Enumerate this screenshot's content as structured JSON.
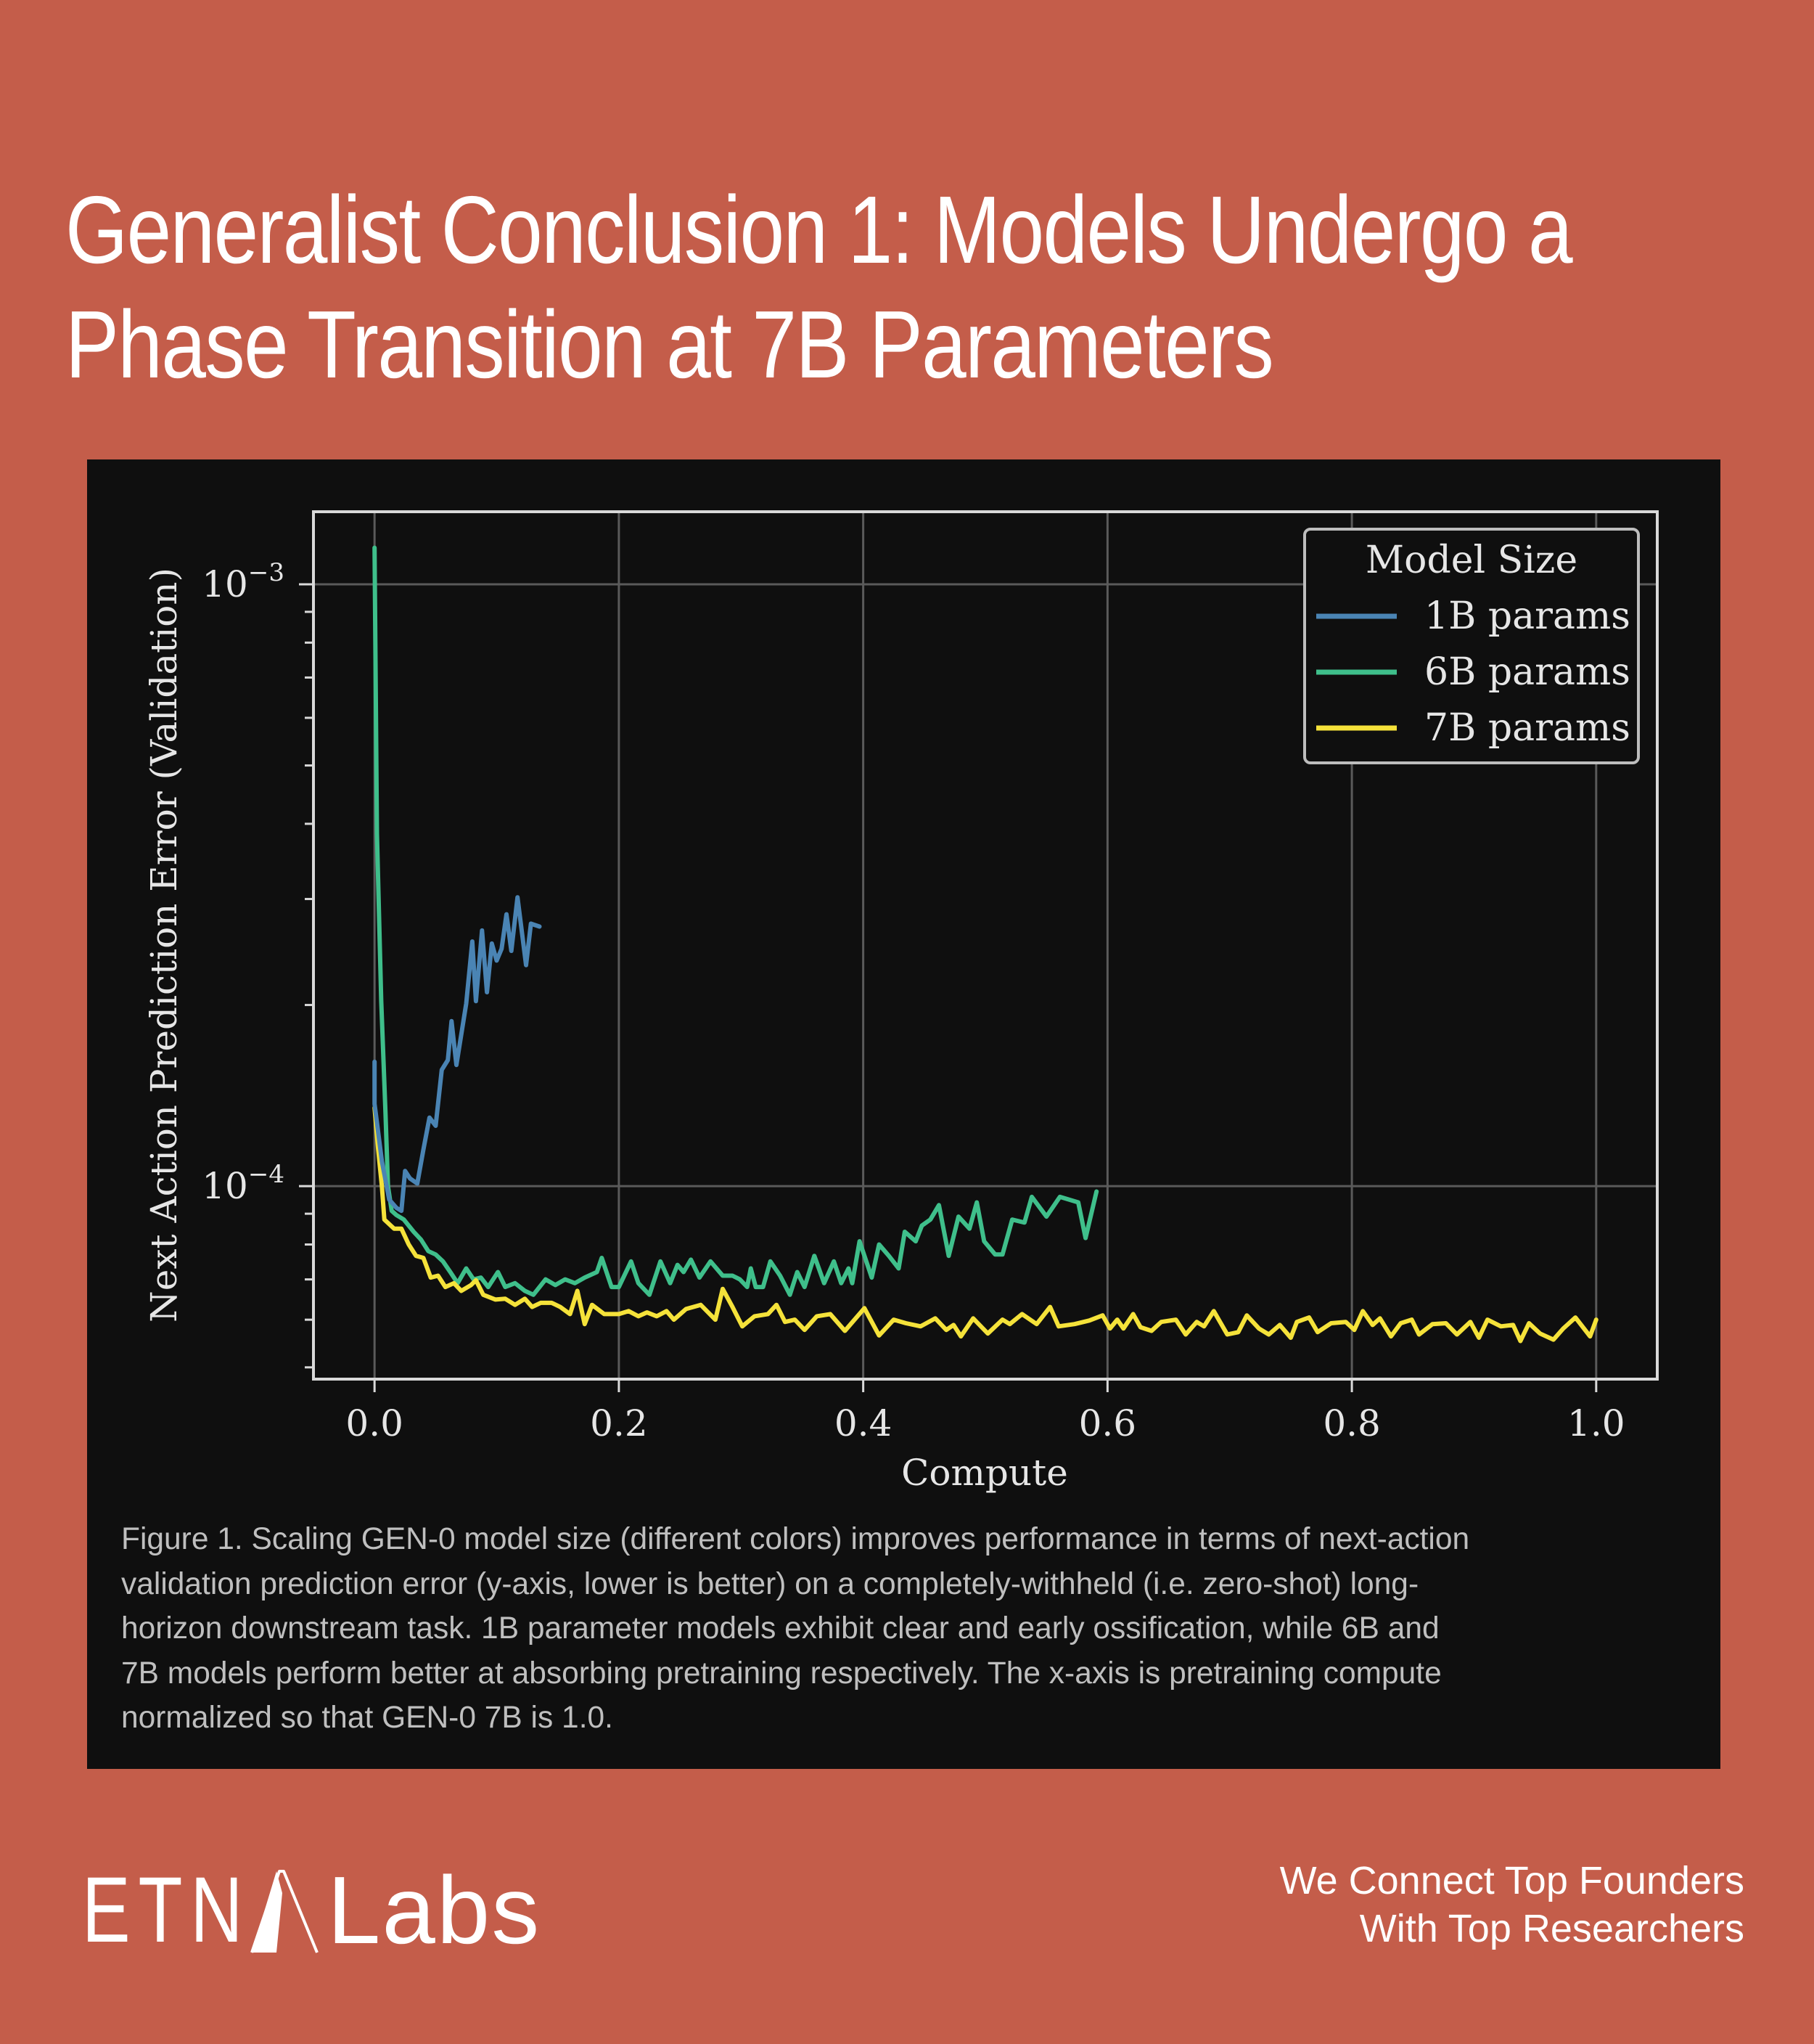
{
  "header": {
    "title_lines": [
      "Generalist Conclusion 1: Models Undergo a",
      "Phase Transition at 7B Parameters"
    ]
  },
  "colors": {
    "background": "#C45D4A",
    "panel": "#0f0f0f",
    "series_1b": "#4a84b4",
    "series_6b": "#3fbf8b",
    "series_7b": "#f5e23a",
    "grid": "#5a5a5a",
    "frame": "#d9d9d9",
    "text_light": "#e6e6e6",
    "caption": "#bfbfbf"
  },
  "caption": {
    "lines": [
      "Figure 1. Scaling GEN-0 model size (different colors) improves performance in terms of next-action",
      "validation prediction error (y-axis, lower is better) on a completely-withheld (i.e. zero-shot) long-",
      "horizon downstream task. 1B parameter models exhibit clear and early ossification, while 6B and",
      "7B models perform better at absorbing pretraining respectively. The x-axis is pretraining compute",
      "normalized so that GEN-0 7B is 1.0."
    ]
  },
  "footer": {
    "logo_left": "ETN",
    "logo_right": "Labs",
    "logo_icon": "mountain-a-icon",
    "tagline_lines": [
      "We Connect Top Founders",
      "With Top Researchers"
    ]
  },
  "chart_data": {
    "type": "line",
    "title": "",
    "xlabel": "Compute",
    "ylabel": "Next Action Prediction Error (Validation)",
    "xscale": "linear",
    "yscale": "log",
    "xlim": [
      -0.05,
      1.05
    ],
    "ylim": [
      4.78e-05,
      0.00132
    ],
    "xticks": [
      0.0,
      0.2,
      0.4,
      0.6,
      0.8,
      1.0
    ],
    "xtick_labels": [
      "0.0",
      "0.2",
      "0.4",
      "0.6",
      "0.8",
      "1.0"
    ],
    "yticks": [
      0.001,
      0.0001
    ],
    "ytick_labels": [
      {
        "base": "10",
        "exp": "−3"
      },
      {
        "base": "10",
        "exp": "−4"
      }
    ],
    "yminor_ticks": [
      0.0009,
      0.0008,
      0.0007,
      0.0006,
      0.0005,
      0.0004,
      0.0003,
      0.0002,
      9e-05,
      8e-05,
      7e-05,
      6e-05,
      5e-05
    ],
    "grid": true,
    "legend": {
      "title": "Model Size",
      "placement": "top-right",
      "entries": [
        "1B params",
        "6B params",
        "7B params"
      ]
    },
    "series": [
      {
        "name": "1B params",
        "color_key": "series_1b",
        "x": [
          0,
          0.0,
          0.006,
          0.012,
          0.018,
          0.022,
          0.025,
          0.029,
          0.035,
          0.04,
          0.045,
          0.05,
          0.055,
          0.06,
          0.063,
          0.067,
          0.075,
          0.08,
          0.083,
          0.088,
          0.092,
          0.096,
          0.1,
          0.104,
          0.108,
          0.112,
          0.117,
          0.124,
          0.128,
          0.135
        ],
        "y": [
          0.000161,
          0.000137,
          0.00011,
          9.5e-05,
          9.2e-05,
          9.1e-05,
          0.000106,
          0.000103,
          0.000101,
          0.000115,
          0.00013,
          0.000126,
          0.000156,
          0.000162,
          0.000188,
          0.000159,
          0.000201,
          0.000255,
          0.000203,
          0.000266,
          0.00021,
          0.000253,
          0.000237,
          0.000248,
          0.000283,
          0.000246,
          0.000302,
          0.000233,
          0.000273,
          0.00027
        ]
      },
      {
        "name": "6B params",
        "color_key": "series_6b",
        "x": [
          0,
          0.002,
          0.0055,
          0.009,
          0.011,
          0.014,
          0.018,
          0.024,
          0.032,
          0.038,
          0.044,
          0.05,
          0.056,
          0.062,
          0.068,
          0.075,
          0.081,
          0.087,
          0.093,
          0.101,
          0.107,
          0.115,
          0.123,
          0.13,
          0.14,
          0.148,
          0.156,
          0.164,
          0.172,
          0.182,
          0.186,
          0.194,
          0.2,
          0.21,
          0.216,
          0.225,
          0.234,
          0.242,
          0.248,
          0.253,
          0.259,
          0.266,
          0.275,
          0.285,
          0.293,
          0.299,
          0.305,
          0.308,
          0.312,
          0.318,
          0.324,
          0.332,
          0.34,
          0.346,
          0.352,
          0.36,
          0.368,
          0.376,
          0.382,
          0.388,
          0.391,
          0.397,
          0.407,
          0.413,
          0.421,
          0.429,
          0.434,
          0.443,
          0.448,
          0.455,
          0.462,
          0.47,
          0.478,
          0.487,
          0.493,
          0.499,
          0.508,
          0.514,
          0.522,
          0.532,
          0.538,
          0.55,
          0.561,
          0.576,
          0.582,
          0.591
        ],
        "y": [
          0.00115,
          0.000385,
          0.000203,
          0.000132,
          0.0001,
          9.1e-05,
          8.95e-05,
          8.8e-05,
          8.4e-05,
          8.15e-05,
          7.8e-05,
          7.7e-05,
          7.5e-05,
          7.2e-05,
          6.9e-05,
          7.3e-05,
          7e-05,
          7.05e-05,
          6.8e-05,
          7.2e-05,
          6.8e-05,
          6.9e-05,
          6.7e-05,
          6.6e-05,
          7e-05,
          6.85e-05,
          7e-05,
          6.9e-05,
          7.05e-05,
          7.2e-05,
          7.6e-05,
          6.8e-05,
          6.8e-05,
          7.5e-05,
          6.9e-05,
          6.6e-05,
          7.5e-05,
          6.9e-05,
          7.4e-05,
          7.2e-05,
          7.55e-05,
          7.05e-05,
          7.5e-05,
          7.1e-05,
          7.1e-05,
          7e-05,
          6.8e-05,
          7.3e-05,
          6.8e-05,
          6.8e-05,
          7.5e-05,
          7.1e-05,
          6.6e-05,
          7.2e-05,
          6.8e-05,
          7.66e-05,
          6.9e-05,
          7.5e-05,
          6.9e-05,
          7.3e-05,
          6.9e-05,
          8.1e-05,
          7.05e-05,
          8e-05,
          7.66e-05,
          7.3e-05,
          8.4e-05,
          8.1e-05,
          8.6e-05,
          8.8e-05,
          9.3e-05,
          7.66e-05,
          8.9e-05,
          8.5e-05,
          9.4e-05,
          8.1e-05,
          7.7e-05,
          7.7e-05,
          8.8e-05,
          8.7e-05,
          9.6e-05,
          8.9e-05,
          9.6e-05,
          9.4e-05,
          8.2e-05,
          9.8e-05
        ]
      },
      {
        "name": "7B params",
        "color_key": "series_7b",
        "x": [
          0,
          0.003,
          0.006,
          0.008,
          0.016,
          0.022,
          0.028,
          0.034,
          0.04,
          0.046,
          0.052,
          0.058,
          0.065,
          0.071,
          0.079,
          0.083,
          0.089,
          0.099,
          0.107,
          0.115,
          0.123,
          0.129,
          0.136,
          0.145,
          0.152,
          0.16,
          0.166,
          0.172,
          0.178,
          0.188,
          0.2,
          0.208,
          0.216,
          0.223,
          0.231,
          0.239,
          0.245,
          0.255,
          0.267,
          0.279,
          0.285,
          0.293,
          0.301,
          0.311,
          0.322,
          0.329,
          0.336,
          0.344,
          0.352,
          0.362,
          0.373,
          0.385,
          0.401,
          0.413,
          0.425,
          0.435,
          0.447,
          0.459,
          0.468,
          0.474,
          0.48,
          0.49,
          0.502,
          0.514,
          0.52,
          0.53,
          0.542,
          0.553,
          0.56,
          0.573,
          0.585,
          0.596,
          0.602,
          0.608,
          0.613,
          0.621,
          0.627,
          0.636,
          0.644,
          0.656,
          0.664,
          0.673,
          0.679,
          0.687,
          0.698,
          0.707,
          0.714,
          0.724,
          0.732,
          0.741,
          0.75,
          0.755,
          0.765,
          0.772,
          0.783,
          0.795,
          0.802,
          0.809,
          0.817,
          0.823,
          0.832,
          0.84,
          0.849,
          0.855,
          0.866,
          0.877,
          0.886,
          0.897,
          0.904,
          0.911,
          0.922,
          0.932,
          0.938,
          0.945,
          0.954,
          0.965,
          0.973,
          0.983,
          0.995,
          1.0
        ],
        "y": [
          0.000135,
          0.000115,
          0.0001,
          8.8e-05,
          8.5e-05,
          8.5e-05,
          8e-05,
          7.66e-05,
          7.6e-05,
          7.05e-05,
          7.1e-05,
          6.8e-05,
          6.9e-05,
          6.7e-05,
          6.85e-05,
          6.98e-05,
          6.6e-05,
          6.48e-05,
          6.5e-05,
          6.35e-05,
          6.5e-05,
          6.3e-05,
          6.4e-05,
          6.4e-05,
          6.3e-05,
          6.13e-05,
          6.7e-05,
          5.9e-05,
          6.35e-05,
          6.13e-05,
          6.13e-05,
          6.2e-05,
          6.08e-05,
          6.17e-05,
          6.08e-05,
          6.2e-05,
          6e-05,
          6.25e-05,
          6.35e-05,
          6e-05,
          6.75e-05,
          6.3e-05,
          5.85e-05,
          6.08e-05,
          6.13e-05,
          6.35e-05,
          5.95e-05,
          6e-05,
          5.77e-05,
          6.08e-05,
          6.13e-05,
          5.75e-05,
          6.27e-05,
          5.65e-05,
          6e-05,
          5.92e-05,
          5.85e-05,
          6.03e-05,
          5.77e-05,
          5.88e-05,
          5.63e-05,
          6.03e-05,
          5.69e-05,
          6e-05,
          5.9e-05,
          6.13e-05,
          5.9e-05,
          6.3e-05,
          5.85e-05,
          5.9e-05,
          5.98e-05,
          6.1e-05,
          5.8e-05,
          6e-05,
          5.8e-05,
          6.13e-05,
          5.83e-05,
          5.75e-05,
          5.95e-05,
          6e-05,
          5.67e-05,
          5.95e-05,
          5.85e-05,
          6.2e-05,
          5.67e-05,
          5.72e-05,
          6.1e-05,
          5.8e-05,
          5.67e-05,
          5.88e-05,
          5.6e-05,
          5.95e-05,
          6.05e-05,
          5.72e-05,
          5.92e-05,
          5.95e-05,
          5.77e-05,
          6.2e-05,
          5.88e-05,
          6.03e-05,
          5.63e-05,
          5.92e-05,
          6e-05,
          5.67e-05,
          5.9e-05,
          5.92e-05,
          5.67e-05,
          5.95e-05,
          5.6e-05,
          6e-05,
          5.85e-05,
          5.88e-05,
          5.53e-05,
          5.92e-05,
          5.69e-05,
          5.56e-05,
          5.8e-05,
          6.05e-05,
          5.63e-05,
          6e-05
        ]
      }
    ]
  }
}
